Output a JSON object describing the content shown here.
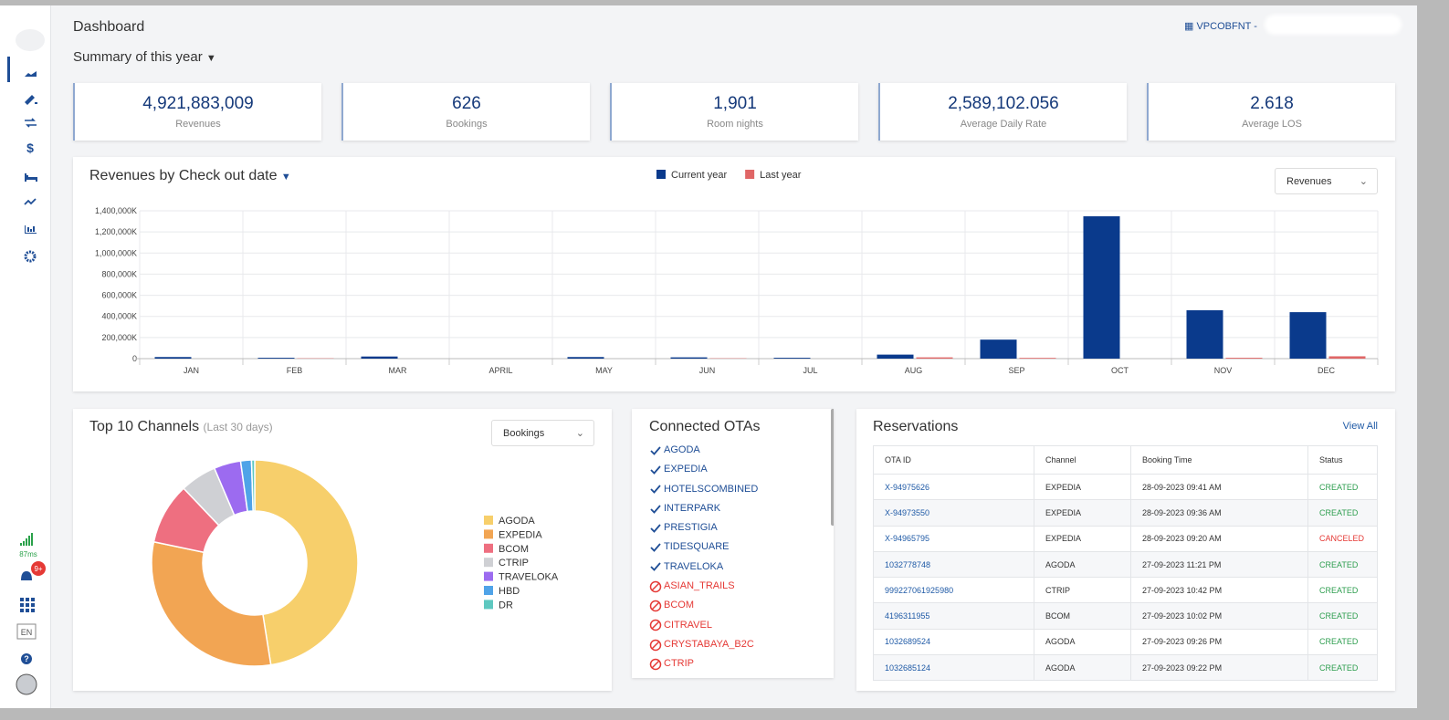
{
  "sidebar": {
    "latency": "87ms",
    "notifications": "9+",
    "language": "EN"
  },
  "header": {
    "title": "Dashboard",
    "summary": "Summary of this year",
    "property": "VPCOBFNT -"
  },
  "kpis": [
    {
      "value": "4,921,883,009",
      "label": "Revenues"
    },
    {
      "value": "626",
      "label": "Bookings"
    },
    {
      "value": "1,901",
      "label": "Room nights"
    },
    {
      "value": "2,589,102.056",
      "label": "Average Daily Rate"
    },
    {
      "value": "2.618",
      "label": "Average LOS"
    }
  ],
  "chart_data": [
    {
      "type": "bar",
      "title": "Revenues by Check out date",
      "selector": "Revenues",
      "categories": [
        "JAN",
        "FEB",
        "MAR",
        "APRIL",
        "MAY",
        "JUN",
        "JUL",
        "AUG",
        "SEP",
        "OCT",
        "NOV",
        "DEC"
      ],
      "series": [
        {
          "name": "Current year",
          "color": "#0a3a8c",
          "values": [
            15000,
            8000,
            20000,
            0,
            15000,
            12000,
            8000,
            38000,
            180000,
            1348000,
            458000,
            440000
          ]
        },
        {
          "name": "Last year",
          "color": "#e06666",
          "values": [
            0,
            3000,
            0,
            0,
            0,
            3000,
            0,
            12000,
            7000,
            0,
            8000,
            22000
          ]
        }
      ],
      "ylim": [
        0,
        1400000
      ],
      "yticks": [
        0,
        {
          "value": 200000,
          "label": "200,000K"
        },
        {
          "value": 400000,
          "label": "400,000K"
        },
        {
          "value": 600000,
          "label": "600,000K"
        },
        {
          "value": 800000,
          "label": "800,000K"
        },
        {
          "value": 1000000,
          "label": "1,000,000K"
        },
        {
          "value": 1200000,
          "label": "1,200,000K"
        },
        {
          "value": 1400000,
          "label": "1,400,000K"
        }
      ],
      "grid": true,
      "legend": "top"
    },
    {
      "type": "pie",
      "title": "Top 10 Channels",
      "subtitle": "(Last 30 days)",
      "selector": "Bookings",
      "categories": [
        "AGODA",
        "EXPEDIA",
        "BCOM",
        "CTRIP",
        "TRAVELOKA",
        "HBD",
        "DR"
      ],
      "values": [
        47.5,
        30.8,
        9.6,
        5.7,
        4.2,
        1.7,
        0.5
      ],
      "colors": [
        "#f7cf6b",
        "#f2a553",
        "#ee6f80",
        "#cfd0d4",
        "#9c6bf0",
        "#4fa3e8",
        "#5ec8c0"
      ],
      "legend": "right"
    }
  ],
  "otas": {
    "title": "Connected OTAs",
    "items": [
      {
        "name": "AGODA",
        "connected": true
      },
      {
        "name": "EXPEDIA",
        "connected": true
      },
      {
        "name": "HOTELSCOMBINED",
        "connected": true
      },
      {
        "name": "INTERPARK",
        "connected": true
      },
      {
        "name": "PRESTIGIA",
        "connected": true
      },
      {
        "name": "TIDESQUARE",
        "connected": true
      },
      {
        "name": "TRAVELOKA",
        "connected": true
      },
      {
        "name": "ASIAN_TRAILS",
        "connected": false
      },
      {
        "name": "BCOM",
        "connected": false
      },
      {
        "name": "CITRAVEL",
        "connected": false
      },
      {
        "name": "CRYSTABAYA_B2C",
        "connected": false
      },
      {
        "name": "CTRIP",
        "connected": false
      }
    ]
  },
  "reservations": {
    "title": "Reservations",
    "link": "View All",
    "columns": [
      "OTA ID",
      "Channel",
      "Booking Time",
      "Status"
    ],
    "rows": [
      {
        "ota_id": "X-94975626",
        "channel": "EXPEDIA",
        "booking_time": "28-09-2023 09:41 AM",
        "status": "CREATED",
        "status_color": "#2e9e4f"
      },
      {
        "ota_id": "X-94973550",
        "channel": "EXPEDIA",
        "booking_time": "28-09-2023 09:36 AM",
        "status": "CREATED",
        "status_color": "#2e9e4f"
      },
      {
        "ota_id": "X-94965795",
        "channel": "EXPEDIA",
        "booking_time": "28-09-2023 09:20 AM",
        "status": "CANCELED",
        "status_color": "#e53935"
      },
      {
        "ota_id": "1032778748",
        "channel": "AGODA",
        "booking_time": "27-09-2023 11:21 PM",
        "status": "CREATED",
        "status_color": "#2e9e4f"
      },
      {
        "ota_id": "999227061925980",
        "channel": "CTRIP",
        "booking_time": "27-09-2023 10:42 PM",
        "status": "CREATED",
        "status_color": "#2e9e4f"
      },
      {
        "ota_id": "4196311955",
        "channel": "BCOM",
        "booking_time": "27-09-2023 10:02 PM",
        "status": "CREATED",
        "status_color": "#2e9e4f"
      },
      {
        "ota_id": "1032689524",
        "channel": "AGODA",
        "booking_time": "27-09-2023 09:26 PM",
        "status": "CREATED",
        "status_color": "#2e9e4f"
      },
      {
        "ota_id": "1032685124",
        "channel": "AGODA",
        "booking_time": "27-09-2023 09:22 PM",
        "status": "CREATED",
        "status_color": "#2e9e4f"
      }
    ]
  }
}
